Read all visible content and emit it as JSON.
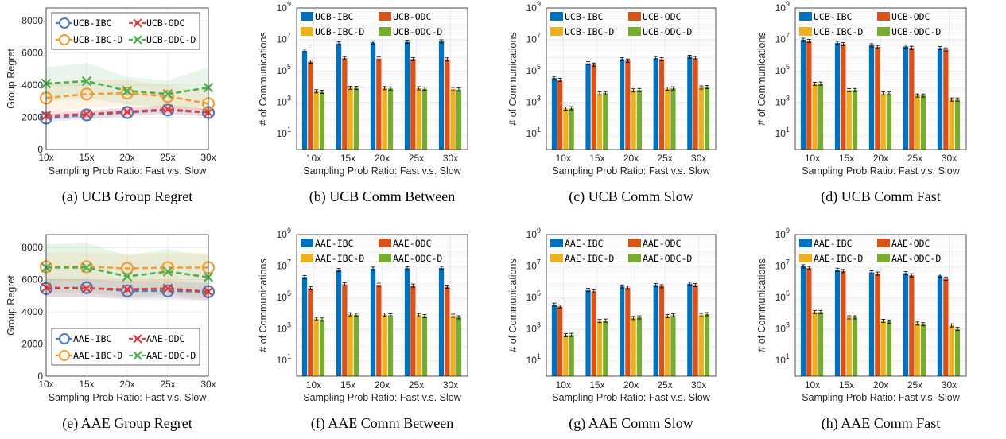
{
  "figure": {
    "panels": [
      {
        "id": "a",
        "caption": "(a) UCB Group Regret"
      },
      {
        "id": "b",
        "caption": "(b) UCB Comm Between"
      },
      {
        "id": "c",
        "caption": "(c) UCB Comm Slow"
      },
      {
        "id": "d",
        "caption": "(d) UCB Comm Fast"
      },
      {
        "id": "e",
        "caption": "(e) AAE Group Regret"
      },
      {
        "id": "f",
        "caption": "(f) AAE Comm Between"
      },
      {
        "id": "g",
        "caption": "(g) AAE Comm Slow"
      },
      {
        "id": "h",
        "caption": "(h) AAE Comm Fast"
      }
    ]
  },
  "colors": {
    "blue": "#0072BD",
    "red": "#D95319",
    "orange": "#EDB120",
    "green": "#77AC30",
    "line_blue": "#4a7fc1",
    "line_red": "#e33a3a",
    "line_orange": "#f39c32",
    "line_green": "#4caf50"
  },
  "chart_data": [
    {
      "panel": "a",
      "type": "line",
      "title": "",
      "xlabel": "Sampling Prob Ratio: Fast v.s. Slow",
      "ylabel": "Group Regret",
      "categories": [
        "10x",
        "15x",
        "20x",
        "25x",
        "30x"
      ],
      "ylim": [
        0,
        8800
      ],
      "yticks": [
        0,
        2000,
        4000,
        6000,
        8000
      ],
      "grid": true,
      "legend_position": "top",
      "series": [
        {
          "name": "UCB-IBC",
          "marker": "circle",
          "color": "line_blue",
          "values": [
            1950,
            2150,
            2300,
            2450,
            2300
          ],
          "band": [
            [
              1700,
              2200
            ],
            [
              1900,
              2400
            ],
            [
              2050,
              2550
            ],
            [
              2150,
              2700
            ],
            [
              2050,
              2550
            ]
          ]
        },
        {
          "name": "UCB-ODC",
          "marker": "x",
          "color": "line_red",
          "values": [
            2100,
            2200,
            2350,
            2500,
            2300
          ],
          "band": [
            [
              1850,
              2350
            ],
            [
              1950,
              2450
            ],
            [
              2100,
              2600
            ],
            [
              2250,
              2750
            ],
            [
              2050,
              2550
            ]
          ]
        },
        {
          "name": "UCB-IBC-D",
          "marker": "circle",
          "color": "line_orange",
          "values": [
            3200,
            3450,
            3500,
            3300,
            2850
          ],
          "band": [
            [
              2300,
              4100
            ],
            [
              2600,
              4400
            ],
            [
              2700,
              4300
            ],
            [
              2600,
              4000
            ],
            [
              2200,
              3600
            ]
          ]
        },
        {
          "name": "UCB-ODC-D",
          "marker": "x",
          "color": "line_green",
          "values": [
            4100,
            4250,
            3650,
            3450,
            3850
          ],
          "band": [
            [
              3000,
              5100
            ],
            [
              3200,
              5400
            ],
            [
              2800,
              4500
            ],
            [
              2600,
              4300
            ],
            [
              2700,
              5100
            ]
          ]
        }
      ]
    },
    {
      "panel": "b",
      "type": "bar",
      "title": "",
      "xlabel": "Sampling Prob Ratio: Fast v.s. Slow",
      "ylabel": "# of Communications",
      "categories": [
        "10x",
        "15x",
        "20x",
        "25x",
        "30x"
      ],
      "yscale": "log",
      "ylim": [
        1,
        1000000000
      ],
      "yticks": [
        "10^1",
        "10^3",
        "10^5",
        "10^7",
        "10^9"
      ],
      "grid": true,
      "legend_position": "top",
      "series": [
        {
          "name": "UCB-IBC",
          "color": "blue",
          "values": [
            1900000,
            5500000,
            6500000,
            7000000,
            7500000
          ]
        },
        {
          "name": "UCB-ODC",
          "color": "red",
          "values": [
            380000,
            640000,
            600000,
            560000,
            530000
          ]
        },
        {
          "name": "UCB-IBC-D",
          "color": "orange",
          "values": [
            5000,
            8500,
            8000,
            7800,
            7000
          ]
        },
        {
          "name": "UCB-ODC-D",
          "color": "green",
          "values": [
            4600,
            8200,
            7600,
            7300,
            6400
          ]
        }
      ]
    },
    {
      "panel": "c",
      "type": "bar",
      "title": "",
      "xlabel": "Sampling Prob Ratio: Fast v.s. Slow",
      "ylabel": "# of Communications",
      "categories": [
        "10x",
        "15x",
        "20x",
        "25x",
        "30x"
      ],
      "yscale": "log",
      "ylim": [
        1,
        1000000000
      ],
      "yticks": [
        "10^1",
        "10^3",
        "10^5",
        "10^7",
        "10^9"
      ],
      "grid": true,
      "legend_position": "top",
      "series": [
        {
          "name": "UCB-IBC",
          "color": "blue",
          "values": [
            35000,
            300000,
            550000,
            650000,
            780000
          ]
        },
        {
          "name": "UCB-ODC",
          "color": "red",
          "values": [
            27000,
            250000,
            450000,
            550000,
            650000
          ]
        },
        {
          "name": "UCB-IBC-D",
          "color": "orange",
          "values": [
            400,
            3600,
            5700,
            7300,
            8800
          ]
        },
        {
          "name": "UCB-ODC-D",
          "color": "green",
          "values": [
            420,
            3800,
            6000,
            7700,
            9300
          ]
        }
      ]
    },
    {
      "panel": "d",
      "type": "bar",
      "title": "",
      "xlabel": "Sampling Prob Ratio: Fast v.s. Slow",
      "ylabel": "# of Communications",
      "categories": [
        "10x",
        "15x",
        "20x",
        "25x",
        "30x"
      ],
      "yscale": "log",
      "ylim": [
        1,
        1000000000
      ],
      "yticks": [
        "10^1",
        "10^3",
        "10^5",
        "10^7",
        "10^9"
      ],
      "grid": true,
      "legend_position": "top",
      "series": [
        {
          "name": "UCB-IBC",
          "color": "blue",
          "values": [
            9500000,
            6000000,
            4200000,
            3600000,
            2800000
          ]
        },
        {
          "name": "UCB-ODC",
          "color": "red",
          "values": [
            8000000,
            5000000,
            3300000,
            2900000,
            2300000
          ]
        },
        {
          "name": "UCB-IBC-D",
          "color": "orange",
          "values": [
            15000,
            5800,
            3600,
            2700,
            1500
          ]
        },
        {
          "name": "UCB-ODC-D",
          "color": "green",
          "values": [
            15500,
            6000,
            3600,
            2700,
            1500
          ]
        }
      ]
    },
    {
      "panel": "e",
      "type": "line",
      "title": "",
      "xlabel": "Sampling Prob Ratio: Fast v.s. Slow",
      "ylabel": "Group Regret",
      "categories": [
        "10x",
        "15x",
        "20x",
        "25x",
        "30x"
      ],
      "ylim": [
        0,
        8800
      ],
      "yticks": [
        0,
        2000,
        4000,
        6000,
        8000
      ],
      "grid": true,
      "legend_position": "bottom",
      "series": [
        {
          "name": "AAE-IBC",
          "marker": "circle",
          "color": "line_blue",
          "values": [
            5450,
            5500,
            5300,
            5300,
            5250
          ],
          "band": [
            [
              4900,
              6000
            ],
            [
              4950,
              6050
            ],
            [
              4750,
              5850
            ],
            [
              4750,
              5850
            ],
            [
              4700,
              5800
            ]
          ]
        },
        {
          "name": "AAE-ODC",
          "marker": "x",
          "color": "line_red",
          "values": [
            5500,
            5450,
            5400,
            5450,
            5250
          ],
          "band": [
            [
              4950,
              6050
            ],
            [
              4900,
              6000
            ],
            [
              4850,
              5950
            ],
            [
              4900,
              6000
            ],
            [
              4700,
              5800
            ]
          ]
        },
        {
          "name": "AAE-IBC-D",
          "marker": "circle",
          "color": "line_orange",
          "values": [
            6800,
            6800,
            6700,
            6750,
            6750
          ],
          "band": [
            [
              5900,
              7700
            ],
            [
              5900,
              7700
            ],
            [
              5800,
              7600
            ],
            [
              5850,
              7650
            ],
            [
              5850,
              7650
            ]
          ]
        },
        {
          "name": "AAE-ODC-D",
          "marker": "x",
          "color": "line_green",
          "values": [
            6750,
            6750,
            6200,
            6500,
            6150
          ],
          "band": [
            [
              5200,
              8200
            ],
            [
              5200,
              8300
            ],
            [
              4900,
              7500
            ],
            [
              5100,
              7900
            ],
            [
              4800,
              7500
            ]
          ]
        }
      ]
    },
    {
      "panel": "f",
      "type": "bar",
      "title": "",
      "xlabel": "Sampling Prob Ratio: Fast v.s. Slow",
      "ylabel": "# of Communications",
      "categories": [
        "10x",
        "15x",
        "20x",
        "25x",
        "30x"
      ],
      "yscale": "log",
      "ylim": [
        1,
        1000000000
      ],
      "yticks": [
        "10^1",
        "10^3",
        "10^5",
        "10^7",
        "10^9"
      ],
      "grid": true,
      "legend_position": "top",
      "series": [
        {
          "name": "AAE-IBC",
          "color": "blue",
          "values": [
            2000000,
            5500000,
            6800000,
            7300000,
            7500000
          ]
        },
        {
          "name": "AAE-ODC",
          "color": "red",
          "values": [
            380000,
            680000,
            650000,
            570000,
            480000
          ]
        },
        {
          "name": "AAE-IBC-D",
          "color": "orange",
          "values": [
            4400,
            8600,
            8200,
            7700,
            7000
          ]
        },
        {
          "name": "AAE-ODC-D",
          "color": "green",
          "values": [
            4000,
            8000,
            7500,
            6500,
            5500
          ]
        }
      ]
    },
    {
      "panel": "g",
      "type": "bar",
      "title": "",
      "xlabel": "Sampling Prob Ratio: Fast v.s. Slow",
      "ylabel": "# of Communications",
      "categories": [
        "10x",
        "15x",
        "20x",
        "25x",
        "30x"
      ],
      "yscale": "log",
      "ylim": [
        1,
        1000000000
      ],
      "yticks": [
        "10^1",
        "10^3",
        "10^5",
        "10^7",
        "10^9"
      ],
      "grid": true,
      "legend_position": "top",
      "series": [
        {
          "name": "AAE-IBC",
          "color": "blue",
          "values": [
            35000,
            300000,
            500000,
            620000,
            750000
          ]
        },
        {
          "name": "AAE-ODC",
          "color": "red",
          "values": [
            27000,
            250000,
            420000,
            520000,
            620000
          ]
        },
        {
          "name": "AAE-IBC-D",
          "color": "orange",
          "values": [
            400,
            3200,
            5000,
            6500,
            7800
          ]
        },
        {
          "name": "AAE-ODC-D",
          "color": "green",
          "values": [
            420,
            3400,
            5500,
            7300,
            8800
          ]
        }
      ]
    },
    {
      "panel": "h",
      "type": "bar",
      "title": "",
      "xlabel": "Sampling Prob Ratio: Fast v.s. Slow",
      "ylabel": "# of Communications",
      "categories": [
        "10x",
        "15x",
        "20x",
        "25x",
        "30x"
      ],
      "yscale": "log",
      "ylim": [
        1,
        1000000000
      ],
      "yticks": [
        "10^1",
        "10^3",
        "10^5",
        "10^7",
        "10^9"
      ],
      "grid": true,
      "legend_position": "top",
      "series": [
        {
          "name": "AAE-IBC",
          "color": "blue",
          "values": [
            9500000,
            5800000,
            4000000,
            3500000,
            2500000
          ]
        },
        {
          "name": "AAE-ODC",
          "color": "red",
          "values": [
            7500000,
            4800000,
            3300000,
            2600000,
            1600000
          ]
        },
        {
          "name": "AAE-IBC-D",
          "color": "orange",
          "values": [
            12000,
            5500,
            3300,
            2200,
            1700
          ]
        },
        {
          "name": "AAE-ODC-D",
          "color": "green",
          "values": [
            12000,
            5500,
            3000,
            2000,
            1000
          ]
        }
      ]
    }
  ]
}
